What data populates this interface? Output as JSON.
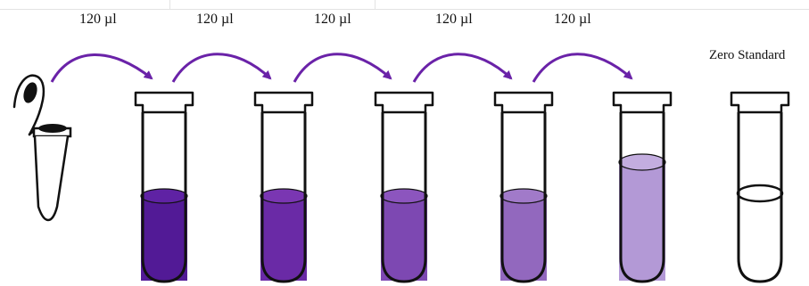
{
  "transfer_labels": [
    "120 µl",
    "120 µl",
    "120 µl",
    "120 µl",
    "120 µl"
  ],
  "zero_standard_label": "Zero Standard",
  "colors": {
    "arrow": "#6a22a8",
    "outline": "#111111",
    "liquid_1": "#521a96",
    "liquid_2": "#6a2aa6",
    "liquid_3": "#7d48b2",
    "liquid_4": "#9268be",
    "liquid_5": "#b399d6",
    "liquid_top_1": "#5f22a4",
    "liquid_top_2": "#7a36b2",
    "liquid_top_3": "#8c55be",
    "liquid_top_4": "#a17ac9",
    "liquid_top_5": "#c3addf"
  }
}
